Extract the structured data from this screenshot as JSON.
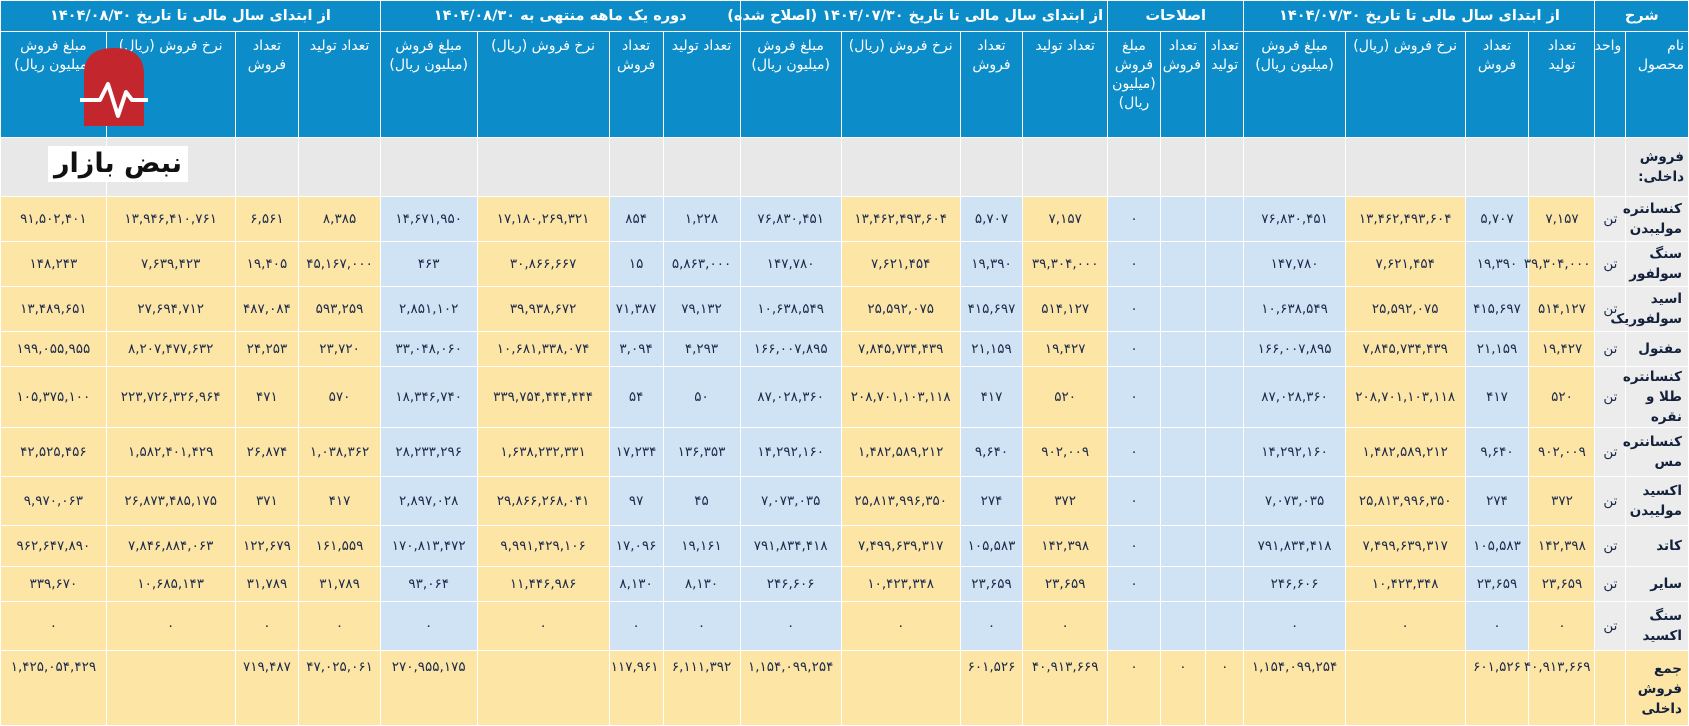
{
  "header_groups": [
    "شرح",
    "از ابتدای سال مالی تا تاریخ ۱۴۰۴/۰۷/۳۰",
    "اصلاحات",
    "از ابتدای سال مالی تا تاریخ ۱۴۰۴/۰۷/۳۰ (اصلاح شده)",
    "دوره یک ماهه منتهی به ۱۴۰۴/۰۸/۳۰",
    "از ابتدای سال مالی تا تاریخ ۱۴۰۴/۰۸/۳۰"
  ],
  "sub_headers": [
    "نام محصول",
    "واحد",
    "تعداد تولید",
    "تعداد فروش",
    "نرخ فروش (ریال)",
    "مبلغ فروش (میلیون ریال)",
    "تعداد تولید",
    "تعداد فروش",
    "مبلغ فروش (میلیون ریال)",
    "تعداد تولید",
    "تعداد فروش",
    "نرخ فروش (ریال)",
    "مبلغ فروش (میلیون ریال)",
    "تعداد تولید",
    "تعداد فروش",
    "نرخ فروش (ریال)",
    "مبلغ فروش (میلیون ریال)",
    "تعداد تولید",
    "تعداد فروش",
    "نرخ فروش (ریال)",
    "مبلغ فروش (میلیون ریال)"
  ],
  "section_label": "فروش داخلی:",
  "rows": [
    {
      "cells": [
        "کنسانتره مولیبدن",
        "تن",
        "۷,۱۵۷",
        "۵,۷۰۷",
        "۱۳,۴۶۲,۴۹۳,۶۰۴",
        "۷۶,۸۳۰,۴۵۱",
        "",
        "",
        "۰",
        "۷,۱۵۷",
        "۵,۷۰۷",
        "۱۳,۴۶۲,۴۹۳,۶۰۴",
        "۷۶,۸۳۰,۴۵۱",
        "۱,۲۲۸",
        "۸۵۴",
        "۱۷,۱۸۰,۲۶۹,۳۲۱",
        "۱۴,۶۷۱,۹۵۰",
        "۸,۳۸۵",
        "۶,۵۶۱",
        "۱۳,۹۴۶,۴۱۰,۷۶۱",
        "۹۱,۵۰۲,۴۰۱"
      ]
    },
    {
      "cells": [
        "سنگ سولفور",
        "تن",
        "۳۹,۳۰۴,۰۰۰",
        "۱۹,۳۹۰",
        "۷,۶۲۱,۴۵۴",
        "۱۴۷,۷۸۰",
        "",
        "",
        "۰",
        "۳۹,۳۰۴,۰۰۰",
        "۱۹,۳۹۰",
        "۷,۶۲۱,۴۵۴",
        "۱۴۷,۷۸۰",
        "۵,۸۶۳,۰۰۰",
        "۱۵",
        "۳۰,۸۶۶,۶۶۷",
        "۴۶۳",
        "۴۵,۱۶۷,۰۰۰",
        "۱۹,۴۰۵",
        "۷,۶۳۹,۴۲۳",
        "۱۴۸,۲۴۳"
      ]
    },
    {
      "cells": [
        "اسید سولفوریک",
        "تن",
        "۵۱۴,۱۲۷",
        "۴۱۵,۶۹۷",
        "۲۵,۵۹۲,۰۷۵",
        "۱۰,۶۳۸,۵۴۹",
        "",
        "",
        "۰",
        "۵۱۴,۱۲۷",
        "۴۱۵,۶۹۷",
        "۲۵,۵۹۲,۰۷۵",
        "۱۰,۶۳۸,۵۴۹",
        "۷۹,۱۳۲",
        "۷۱,۳۸۷",
        "۳۹,۹۳۸,۶۷۲",
        "۲,۸۵۱,۱۰۲",
        "۵۹۳,۲۵۹",
        "۴۸۷,۰۸۴",
        "۲۷,۶۹۴,۷۱۲",
        "۱۳,۴۸۹,۶۵۱"
      ]
    },
    {
      "cells": [
        "مفتول",
        "تن",
        "۱۹,۴۲۷",
        "۲۱,۱۵۹",
        "۷,۸۴۵,۷۳۴,۴۳۹",
        "۱۶۶,۰۰۷,۸۹۵",
        "",
        "",
        "۰",
        "۱۹,۴۲۷",
        "۲۱,۱۵۹",
        "۷,۸۴۵,۷۳۴,۴۳۹",
        "۱۶۶,۰۰۷,۸۹۵",
        "۴,۲۹۳",
        "۳,۰۹۴",
        "۱۰,۶۸۱,۳۳۸,۰۷۴",
        "۳۳,۰۴۸,۰۶۰",
        "۲۳,۷۲۰",
        "۲۴,۲۵۳",
        "۸,۲۰۷,۴۷۷,۶۳۲",
        "۱۹۹,۰۵۵,۹۵۵"
      ]
    },
    {
      "cells": [
        "کنسانتره طلا و نقره",
        "تن",
        "۵۲۰",
        "۴۱۷",
        "۲۰۸,۷۰۱,۱۰۳,۱۱۸",
        "۸۷,۰۲۸,۳۶۰",
        "",
        "",
        "۰",
        "۵۲۰",
        "۴۱۷",
        "۲۰۸,۷۰۱,۱۰۳,۱۱۸",
        "۸۷,۰۲۸,۳۶۰",
        "۵۰",
        "۵۴",
        "۳۳۹,۷۵۴,۴۴۴,۴۴۴",
        "۱۸,۳۴۶,۷۴۰",
        "۵۷۰",
        "۴۷۱",
        "۲۲۳,۷۲۶,۳۲۶,۹۶۴",
        "۱۰۵,۳۷۵,۱۰۰"
      ]
    },
    {
      "cells": [
        "کنسانتره مس",
        "تن",
        "۹۰۲,۰۰۹",
        "۹,۶۴۰",
        "۱,۴۸۲,۵۸۹,۲۱۲",
        "۱۴,۲۹۲,۱۶۰",
        "",
        "",
        "۰",
        "۹۰۲,۰۰۹",
        "۹,۶۴۰",
        "۱,۴۸۲,۵۸۹,۲۱۲",
        "۱۴,۲۹۲,۱۶۰",
        "۱۳۶,۳۵۳",
        "۱۷,۲۳۴",
        "۱,۶۳۸,۲۳۲,۳۳۱",
        "۲۸,۲۳۳,۲۹۶",
        "۱,۰۳۸,۳۶۲",
        "۲۶,۸۷۴",
        "۱,۵۸۲,۴۰۱,۴۲۹",
        "۴۲,۵۲۵,۴۵۶"
      ]
    },
    {
      "cells": [
        "اکسید مولیبدن",
        "تن",
        "۳۷۲",
        "۲۷۴",
        "۲۵,۸۱۳,۹۹۶,۳۵۰",
        "۷,۰۷۳,۰۳۵",
        "",
        "",
        "۰",
        "۳۷۲",
        "۲۷۴",
        "۲۵,۸۱۳,۹۹۶,۳۵۰",
        "۷,۰۷۳,۰۳۵",
        "۴۵",
        "۹۷",
        "۲۹,۸۶۶,۲۶۸,۰۴۱",
        "۲,۸۹۷,۰۲۸",
        "۴۱۷",
        "۳۷۱",
        "۲۶,۸۷۳,۴۸۵,۱۷۵",
        "۹,۹۷۰,۰۶۳"
      ]
    },
    {
      "cells": [
        "کاتد",
        "تن",
        "۱۴۲,۳۹۸",
        "۱۰۵,۵۸۳",
        "۷,۴۹۹,۶۳۹,۳۱۷",
        "۷۹۱,۸۳۴,۴۱۸",
        "",
        "",
        "۰",
        "۱۴۲,۳۹۸",
        "۱۰۵,۵۸۳",
        "۷,۴۹۹,۶۳۹,۳۱۷",
        "۷۹۱,۸۳۴,۴۱۸",
        "۱۹,۱۶۱",
        "۱۷,۰۹۶",
        "۹,۹۹۱,۴۲۹,۱۰۶",
        "۱۷۰,۸۱۳,۴۷۲",
        "۱۶۱,۵۵۹",
        "۱۲۲,۶۷۹",
        "۷,۸۴۶,۸۸۴,۰۶۳",
        "۹۶۲,۶۴۷,۸۹۰"
      ]
    },
    {
      "cells": [
        "سایر",
        "تن",
        "۲۳,۶۵۹",
        "۲۳,۶۵۹",
        "۱۰,۴۲۳,۳۴۸",
        "۲۴۶,۶۰۶",
        "",
        "",
        "۰",
        "۲۳,۶۵۹",
        "۲۳,۶۵۹",
        "۱۰,۴۲۳,۳۴۸",
        "۲۴۶,۶۰۶",
        "۸,۱۳۰",
        "۸,۱۳۰",
        "۱۱,۴۴۶,۹۸۶",
        "۹۳,۰۶۴",
        "۳۱,۷۸۹",
        "۳۱,۷۸۹",
        "۱۰,۶۸۵,۱۴۳",
        "۳۳۹,۶۷۰"
      ]
    },
    {
      "cells": [
        "سنگ اکسید",
        "تن",
        "۰",
        "۰",
        "۰",
        "۰",
        "",
        "",
        "",
        "۰",
        "۰",
        "۰",
        "۰",
        "۰",
        "۰",
        "۰",
        "۰",
        "۰",
        "۰",
        "۰",
        "۰"
      ]
    },
    {
      "cells": [
        "جمع فروش داخلی",
        "",
        "۴۰,۹۱۳,۶۶۹",
        "۶۰۱,۵۲۶",
        "",
        "۱,۱۵۴,۰۹۹,۲۵۴",
        "۰",
        "۰",
        "۰",
        "۴۰,۹۱۳,۶۶۹",
        "۶۰۱,۵۲۶",
        "",
        "۱,۱۵۴,۰۹۹,۲۵۴",
        "۶,۱۱۱,۳۹۲",
        "۱۱۷,۹۶۱",
        "",
        "۲۷۰,۹۵۵,۱۷۵",
        "۴۷,۰۲۵,۰۶۱",
        "۷۱۹,۴۸۷",
        "",
        "۱,۴۲۵,۰۵۴,۴۲۹"
      ]
    }
  ],
  "logo": {
    "text": "نبض بازار",
    "color": "#c4262e"
  },
  "colors": {
    "header": "#0c8dc9",
    "yellow": "#fde5a6",
    "blue": "#cfe3f4",
    "gray": "#ececec"
  }
}
